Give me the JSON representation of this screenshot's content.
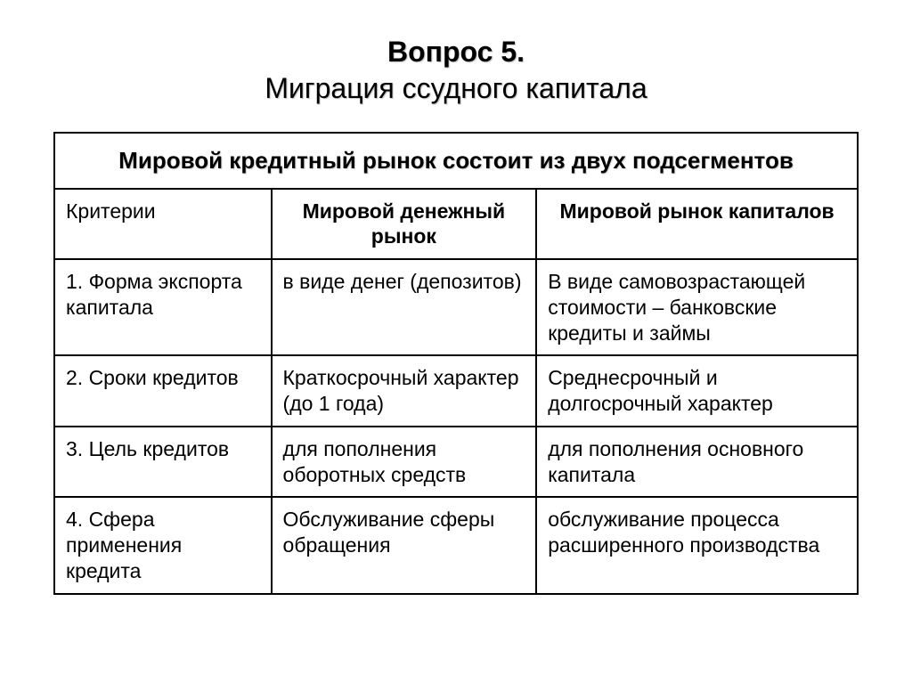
{
  "title": {
    "line1": "Вопрос 5.",
    "line2": "Миграция ссудного капитала"
  },
  "table": {
    "caption": "Мировой кредитный рынок состоит из двух подсегментов",
    "columns": [
      "Критерии",
      "Мировой денежный рынок",
      "Мировой рынок капиталов"
    ],
    "rows": [
      [
        "1. Форма экспорта капитала",
        "в виде денег (депозитов)",
        "В виде самовозрастающей стоимости – банковские кредиты и займы"
      ],
      [
        "2. Сроки кредитов",
        "Краткосрочный характер (до 1 года)",
        "Среднесрочный и долгосрочный характер"
      ],
      [
        "3. Цель кредитов",
        "для пополнения оборотных средств",
        "для пополнения основного капитала"
      ],
      [
        "4. Сфера применения кредита",
        "Обслуживание сферы обращения",
        "обслуживание процесса расширенного производства"
      ]
    ],
    "style": {
      "type": "table",
      "border_color": "#000000",
      "border_width": 2,
      "background_color": "#ffffff",
      "title_fontsize": 32,
      "table_caption_fontsize": 26,
      "header_fontsize": 23,
      "body_fontsize": 23,
      "col_widths_pct": [
        27,
        33,
        40
      ],
      "text_shadow": "1px 1px 1px rgba(0,0,0,0.25)"
    }
  }
}
